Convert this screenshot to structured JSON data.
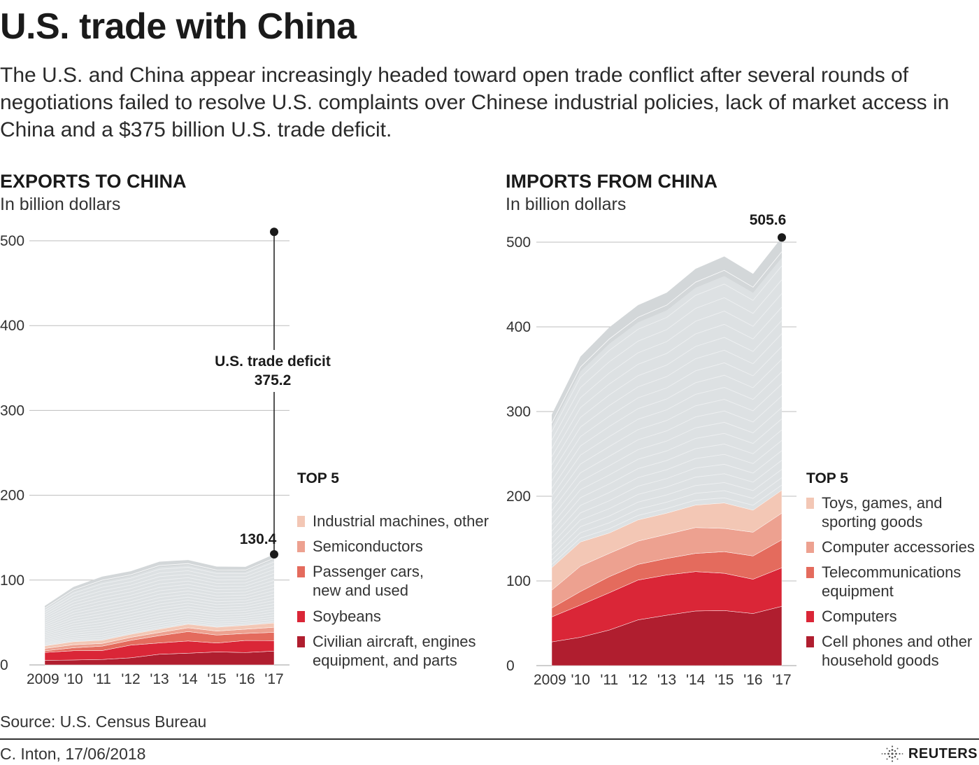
{
  "title": "U.S. trade with China",
  "subtitle": "The U.S. and China appear increasingly headed toward open trade conflict after several rounds of negotiations failed to resolve U.S. complaints over Chinese industrial policies, lack of market access in China and a $375 billion U.S. trade deficit.",
  "exports_panel": {
    "title": "EXPORTS TO CHINA",
    "unit": "In billion dollars"
  },
  "imports_panel": {
    "title": "IMPORTS FROM CHINA",
    "unit": "In billion dollars"
  },
  "source": "Source: U.S. Census Bureau",
  "credit": "C. Inton, 17/06/2018",
  "brand": "REUTERS",
  "colors": {
    "gray_total": "#d3d7d9",
    "gray_lines": "#e6e9eb",
    "top5": [
      "#b01e2f",
      "#da2637",
      "#e46b5d",
      "#eda190",
      "#f3c7b5"
    ]
  },
  "chart_data": [
    {
      "type": "area",
      "stacked": true,
      "title": "EXPORTS TO CHINA",
      "ylabel": "In billion dollars",
      "ylim": [
        0,
        500
      ],
      "yticks": [
        "0",
        "100",
        "200",
        "300",
        "400",
        "500"
      ],
      "categories": [
        "2009",
        "'10",
        "'11",
        "'12",
        "'13",
        "'14",
        "'15",
        "'16",
        "'17"
      ],
      "total": [
        69.5,
        91.9,
        104.1,
        110.5,
        121.7,
        123.7,
        115.9,
        115.6,
        130.4
      ],
      "series": [
        {
          "name": "Civilian aircraft, engines equipment, and parts",
          "values": [
            5.3,
            5.8,
            6.4,
            8.4,
            12.6,
            13.8,
            15.3,
            14.6,
            16.3
          ]
        },
        {
          "name": "Soybeans",
          "values": [
            9.4,
            10.9,
            10.5,
            14.9,
            13.3,
            14.4,
            10.5,
            14.2,
            12.3
          ]
        },
        {
          "name": "Passenger cars, new and used",
          "values": [
            1.8,
            3.5,
            5.2,
            5.7,
            8.6,
            11.1,
            9.4,
            8.3,
            9.8
          ]
        },
        {
          "name": "Semiconductors",
          "values": [
            2.9,
            3.6,
            3.2,
            3.5,
            3.8,
            4.5,
            4.7,
            5.0,
            6.0
          ]
        },
        {
          "name": "Industrial machines, other",
          "values": [
            3.0,
            3.5,
            3.7,
            3.6,
            3.9,
            4.2,
            4.5,
            4.6,
            5.0
          ]
        }
      ],
      "legend_title": "TOP 5",
      "legend": [
        "Industrial machines, other",
        "Semiconductors",
        "Passenger cars, new and used",
        "Soybeans",
        "Civilian aircraft, engines equipment, and parts"
      ],
      "annotations": {
        "deficit_label": "U.S. trade deficit",
        "deficit_value": "375.2",
        "last_value": "130.4"
      }
    },
    {
      "type": "area",
      "stacked": true,
      "title": "IMPORTS FROM CHINA",
      "ylabel": "In billion dollars",
      "ylim": [
        0,
        500
      ],
      "yticks": [
        "0",
        "100",
        "200",
        "300",
        "400",
        "500"
      ],
      "categories": [
        "2009",
        "'10",
        "'11",
        "'12",
        "'13",
        "'14",
        "'15",
        "'16",
        "'17"
      ],
      "total": [
        296.4,
        364.9,
        399.4,
        425.6,
        440.4,
        468.5,
        483.2,
        462.6,
        505.6
      ],
      "series": [
        {
          "name": "Cell phones and other household goods",
          "values": [
            28.0,
            33.5,
            42.0,
            54.0,
            59.5,
            64.5,
            65.0,
            61.5,
            70.0
          ]
        },
        {
          "name": "Computers",
          "values": [
            29.5,
            38.0,
            44.0,
            47.0,
            47.5,
            46.5,
            44.0,
            40.5,
            45.5
          ]
        },
        {
          "name": "Telecommunications equipment",
          "values": [
            10.5,
            16.0,
            19.0,
            18.5,
            19.5,
            21.5,
            25.5,
            27.5,
            33.0
          ]
        },
        {
          "name": "Computer accessories",
          "values": [
            21.0,
            30.0,
            27.5,
            27.5,
            28.5,
            30.5,
            27.5,
            28.0,
            31.5
          ]
        },
        {
          "name": "Toys, games, and sporting goods",
          "values": [
            26.5,
            28.5,
            24.0,
            25.0,
            25.0,
            26.5,
            30.0,
            26.0,
            27.0
          ]
        }
      ],
      "legend_title": "TOP 5",
      "legend": [
        "Toys, games, and sporting goods",
        "Computer accessories",
        "Telecommunications equipment",
        "Computers",
        "Cell phones and other household goods"
      ],
      "annotations": {
        "last_value": "505.6"
      }
    }
  ]
}
